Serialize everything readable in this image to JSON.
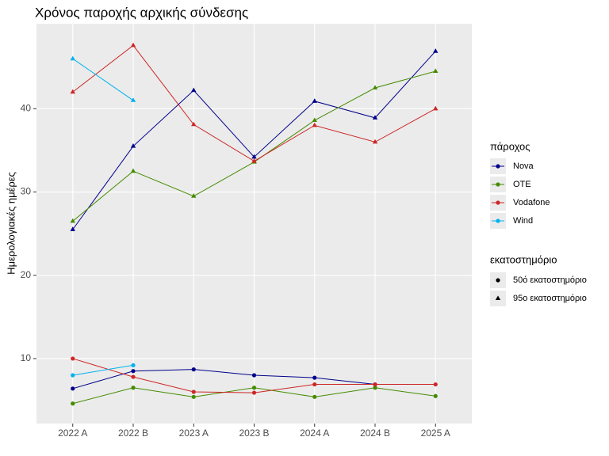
{
  "chart_data": {
    "type": "line",
    "title": "Χρόνος παροχής αρχικής σύνδεσης",
    "y_label": "Ημερολογιακές ημέρες",
    "categories": [
      "2022 A",
      "2022 B",
      "2023 A",
      "2023 B",
      "2024 A",
      "2024 B",
      "2025 A"
    ],
    "ylim": [
      2.2,
      50.2
    ],
    "yticks": [
      10,
      20,
      30,
      40
    ],
    "grid": true,
    "color_legend_title": "πάροχος",
    "shape_legend_title": "εκατοστημόριο",
    "shapes": [
      {
        "name": "50ό εκατοστημόριο",
        "marker": "circle"
      },
      {
        "name": "95ο εκατοστημόριο",
        "marker": "triangle"
      }
    ],
    "series": [
      {
        "name": "Nova",
        "color": "#00008b",
        "percentiles": [
          [
            6.4,
            8.5,
            8.7,
            8.0,
            7.7,
            6.9,
            null
          ],
          [
            25.5,
            35.5,
            42.2,
            34.2,
            40.9,
            38.9,
            46.9
          ]
        ]
      },
      {
        "name": "OTE",
        "color": "#458b00",
        "percentiles": [
          [
            4.6,
            6.5,
            5.4,
            6.5,
            5.4,
            6.5,
            5.5
          ],
          [
            26.5,
            32.5,
            29.5,
            33.6,
            38.6,
            42.5,
            44.5
          ]
        ]
      },
      {
        "name": "Vodafone",
        "color": "#cd2626",
        "percentiles": [
          [
            10.0,
            7.8,
            6.0,
            5.9,
            6.9,
            6.9,
            6.9
          ],
          [
            42.0,
            47.6,
            38.1,
            33.7,
            38.0,
            36.0,
            40.0
          ]
        ]
      },
      {
        "name": "Wind",
        "color": "#00b2ee",
        "percentiles": [
          [
            8.0,
            9.2,
            null,
            null,
            null,
            null,
            null
          ],
          [
            46.0,
            41.0,
            null,
            null,
            null,
            null,
            null
          ]
        ]
      }
    ]
  }
}
